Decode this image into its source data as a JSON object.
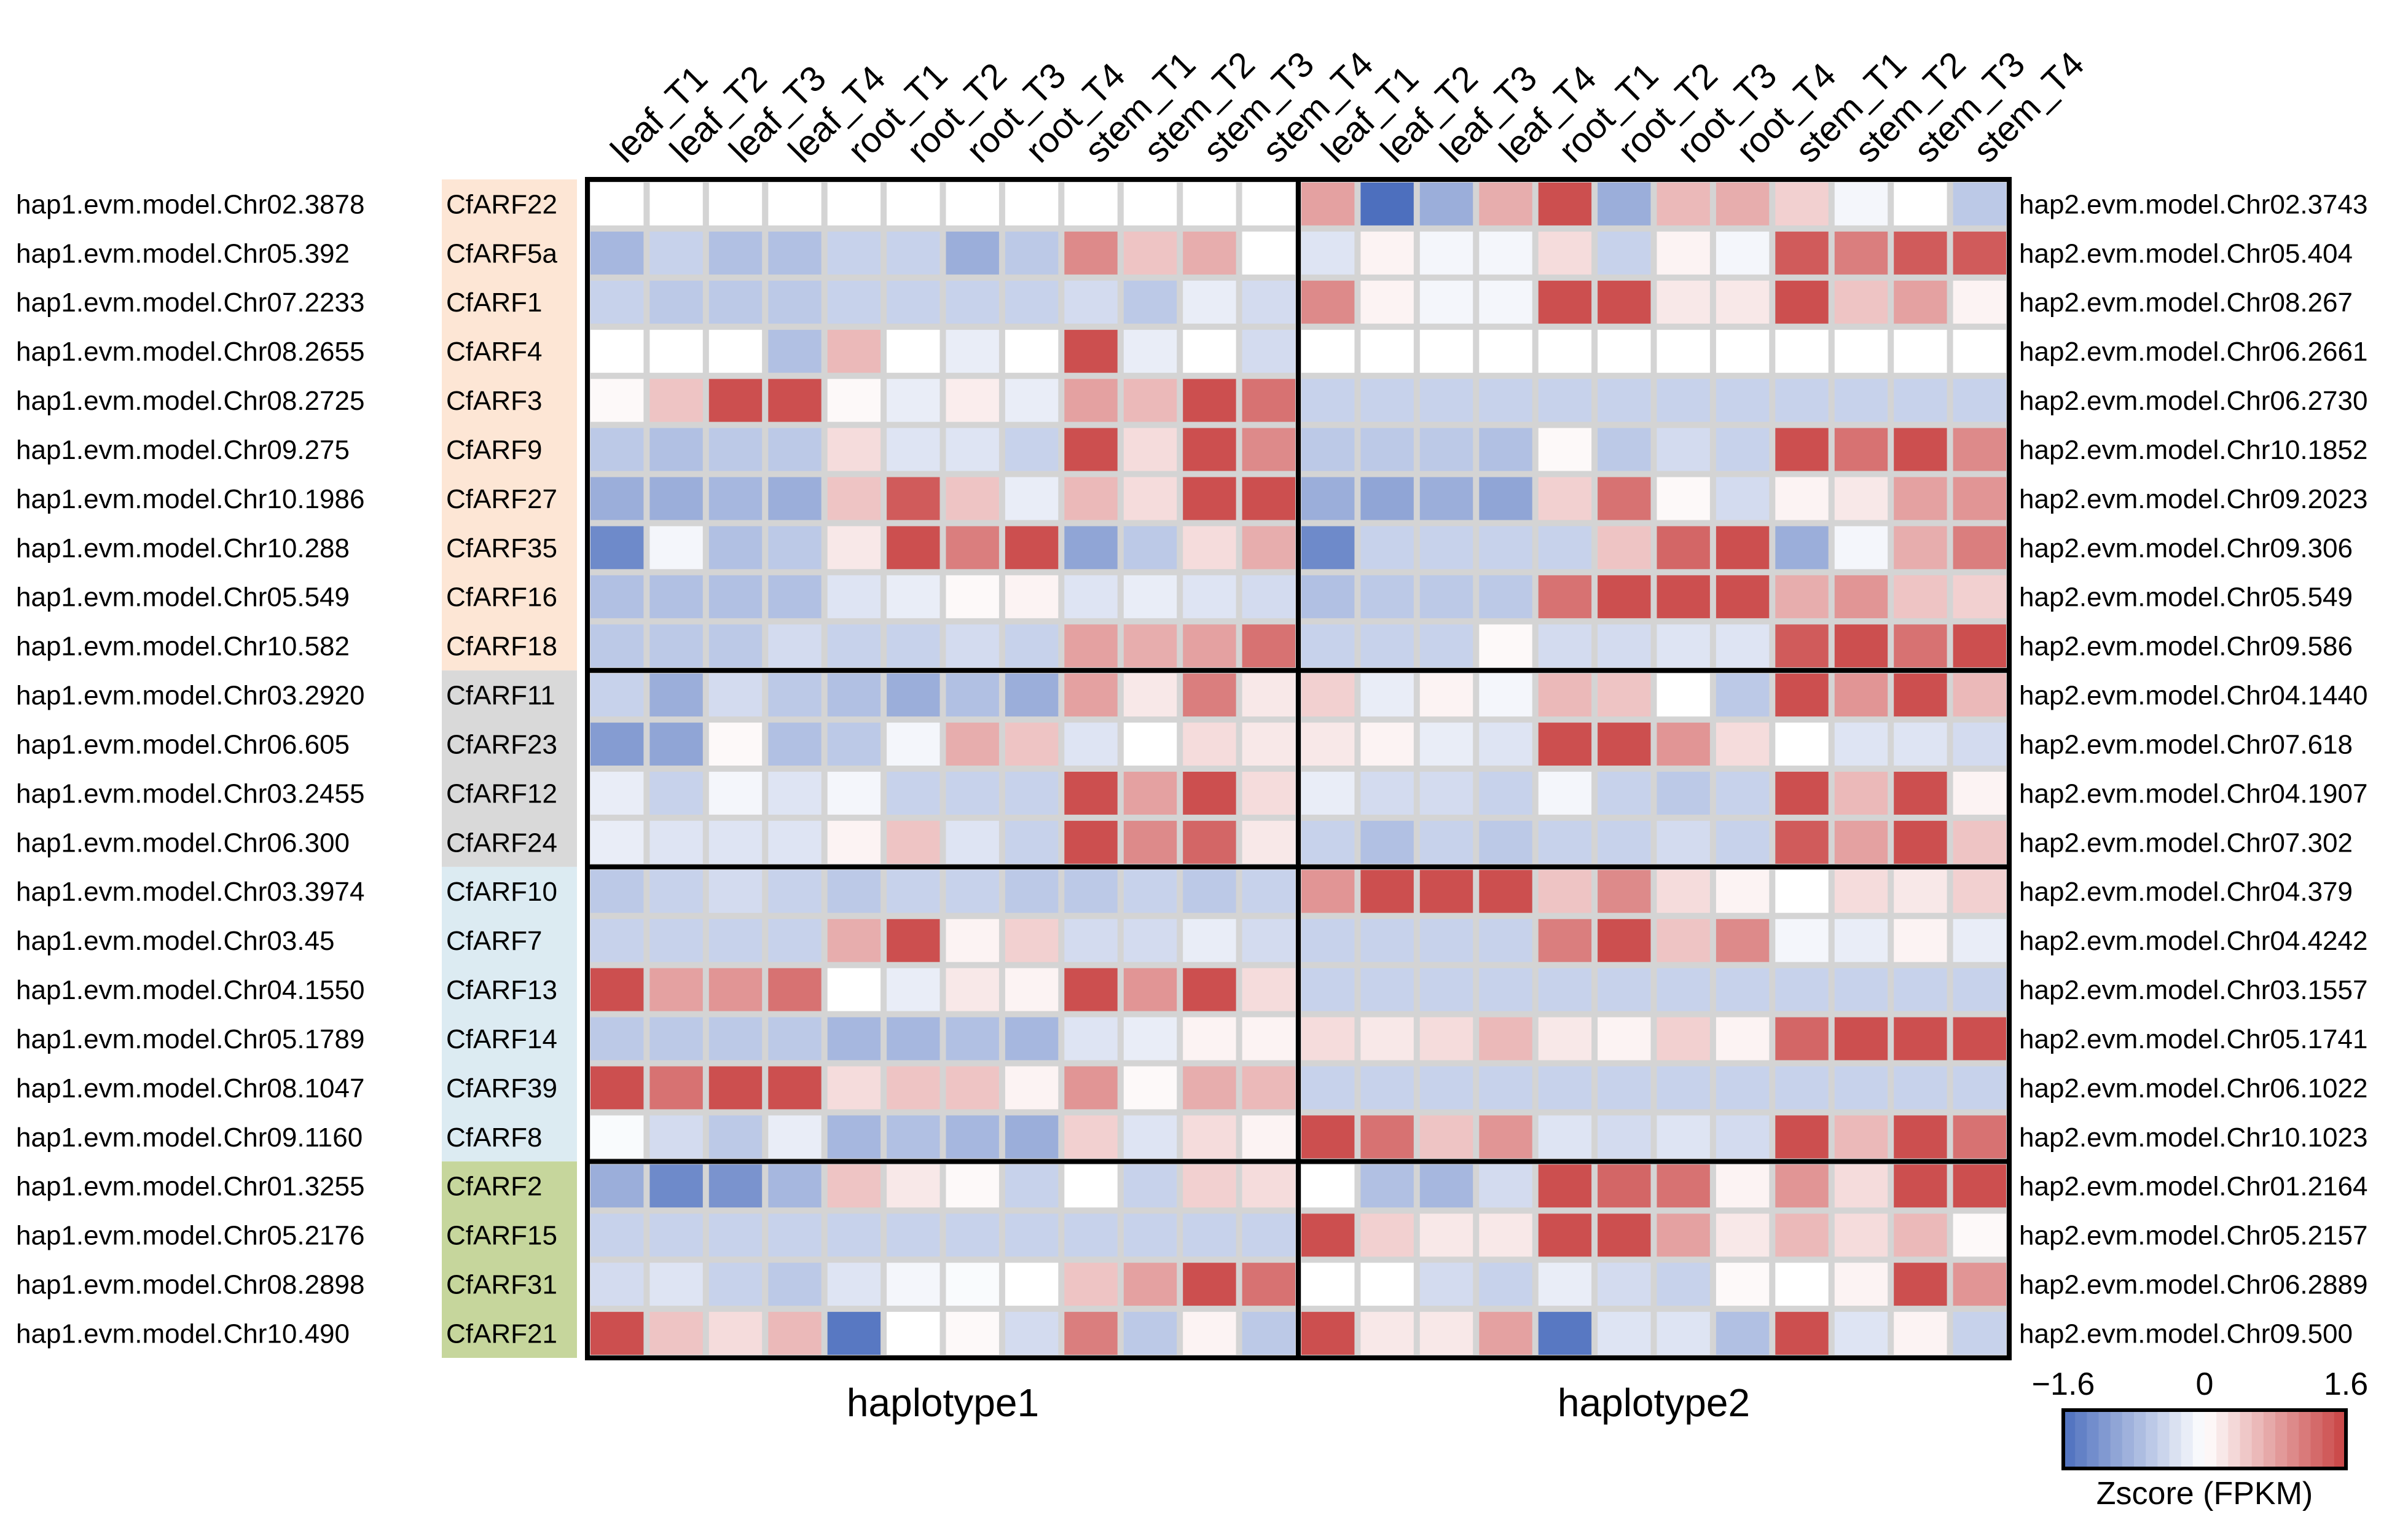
{
  "chart_data": {
    "type": "heatmap",
    "title": "",
    "columns": [
      "leaf_T1",
      "leaf_T2",
      "leaf_T3",
      "leaf_T4",
      "root_T1",
      "root_T2",
      "root_T3",
      "root_T4",
      "stem_T1",
      "stem_T2",
      "stem_T3",
      "stem_T4"
    ],
    "haplotypes": [
      {
        "name": "haplotype1",
        "gene_ids": [
          "hap1.evm.model.Chr02.3878",
          "hap1.evm.model.Chr05.392",
          "hap1.evm.model.Chr07.2233",
          "hap1.evm.model.Chr08.2655",
          "hap1.evm.model.Chr08.2725",
          "hap1.evm.model.Chr09.275",
          "hap1.evm.model.Chr10.1986",
          "hap1.evm.model.Chr10.288",
          "hap1.evm.model.Chr05.549",
          "hap1.evm.model.Chr10.582",
          "hap1.evm.model.Chr03.2920",
          "hap1.evm.model.Chr06.605",
          "hap1.evm.model.Chr03.2455",
          "hap1.evm.model.Chr06.300",
          "hap1.evm.model.Chr03.3974",
          "hap1.evm.model.Chr03.45",
          "hap1.evm.model.Chr04.1550",
          "hap1.evm.model.Chr05.1789",
          "hap1.evm.model.Chr08.1047",
          "hap1.evm.model.Chr09.1160",
          "hap1.evm.model.Chr01.3255",
          "hap1.evm.model.Chr05.2176",
          "hap1.evm.model.Chr08.2898",
          "hap1.evm.model.Chr10.490"
        ]
      },
      {
        "name": "haplotype2",
        "gene_ids": [
          "hap2.evm.model.Chr02.3743",
          "hap2.evm.model.Chr05.404",
          "hap2.evm.model.Chr08.267",
          "hap2.evm.model.Chr06.2661",
          "hap2.evm.model.Chr06.2730",
          "hap2.evm.model.Chr10.1852",
          "hap2.evm.model.Chr09.2023",
          "hap2.evm.model.Chr09.306",
          "hap2.evm.model.Chr05.549",
          "hap2.evm.model.Chr09.586",
          "hap2.evm.model.Chr04.1440",
          "hap2.evm.model.Chr07.618",
          "hap2.evm.model.Chr04.1907",
          "hap2.evm.model.Chr07.302",
          "hap2.evm.model.Chr04.379",
          "hap2.evm.model.Chr04.4242",
          "hap2.evm.model.Chr03.1557",
          "hap2.evm.model.Chr05.1741",
          "hap2.evm.model.Chr06.1022",
          "hap2.evm.model.Chr10.1023",
          "hap2.evm.model.Chr01.2164",
          "hap2.evm.model.Chr05.2157",
          "hap2.evm.model.Chr06.2889",
          "hap2.evm.model.Chr09.500"
        ]
      }
    ],
    "arf_names": [
      "CfARF22",
      "CfARF5a",
      "CfARF1",
      "CfARF4",
      "CfARF3",
      "CfARF9",
      "CfARF27",
      "CfARF35",
      "CfARF16",
      "CfARF18",
      "CfARF11",
      "CfARF23",
      "CfARF12",
      "CfARF24",
      "CfARF10",
      "CfARF7",
      "CfARF13",
      "CfARF14",
      "CfARF39",
      "CfARF8",
      "CfARF2",
      "CfARF15",
      "CfARF31",
      "CfARF21"
    ],
    "groups": [
      {
        "rows": 10,
        "color": "#fde6d5"
      },
      {
        "rows": 4,
        "color": "#d9d9d9"
      },
      {
        "rows": 6,
        "color": "#dcebf2"
      },
      {
        "rows": 4,
        "color": "#c6d69c"
      }
    ],
    "values": [
      [
        0,
        0,
        0,
        0,
        0,
        0,
        0,
        0,
        0,
        0,
        0,
        0,
        0.8,
        -1.6,
        -0.9,
        0.7,
        1.5,
        -0.9,
        0.6,
        0.7,
        0.4,
        -0.1,
        0,
        -0.6
      ],
      [
        -0.8,
        -0.5,
        -0.7,
        -0.7,
        -0.5,
        -0.5,
        -0.9,
        -0.6,
        1.0,
        0.5,
        0.7,
        0,
        -0.3,
        0.1,
        -0.1,
        -0.1,
        0.3,
        -0.5,
        0.1,
        -0.1,
        1.4,
        1.1,
        1.4,
        1.4
      ],
      [
        -0.5,
        -0.6,
        -0.6,
        -0.6,
        -0.5,
        -0.5,
        -0.5,
        -0.5,
        -0.4,
        -0.6,
        -0.2,
        -0.4,
        1.0,
        0.1,
        -0.1,
        -0.1,
        1.5,
        1.5,
        0.2,
        0.2,
        1.5,
        0.5,
        0.8,
        0.1
      ],
      [
        0,
        0,
        0,
        -0.7,
        0.6,
        0,
        -0.2,
        0,
        1.5,
        -0.2,
        0,
        -0.4,
        0,
        0,
        0,
        0,
        0,
        0,
        0,
        0,
        0,
        0,
        0,
        0
      ],
      [
        0.05,
        0.5,
        1.5,
        1.5,
        0.05,
        -0.2,
        0.15,
        -0.2,
        0.8,
        0.6,
        1.5,
        1.2,
        -0.5,
        -0.5,
        -0.5,
        -0.5,
        -0.5,
        -0.5,
        -0.5,
        -0.5,
        -0.5,
        -0.5,
        -0.5,
        -0.5
      ],
      [
        -0.6,
        -0.7,
        -0.6,
        -0.6,
        0.3,
        -0.3,
        -0.3,
        -0.5,
        1.5,
        0.3,
        1.5,
        1.0,
        -0.6,
        -0.6,
        -0.6,
        -0.7,
        0.05,
        -0.6,
        -0.4,
        -0.5,
        1.5,
        1.2,
        1.5,
        1.0
      ],
      [
        -0.9,
        -0.9,
        -0.8,
        -0.9,
        0.5,
        1.4,
        0.5,
        -0.2,
        0.6,
        0.3,
        1.5,
        1.5,
        -0.9,
        -1.0,
        -0.9,
        -1.0,
        0.4,
        1.2,
        0.05,
        -0.4,
        0.1,
        0.2,
        0.8,
        0.9
      ],
      [
        -1.3,
        -0.1,
        -0.7,
        -0.6,
        0.2,
        1.5,
        1.1,
        1.5,
        -1.0,
        -0.6,
        0.3,
        0.7,
        -1.3,
        -0.5,
        -0.5,
        -0.5,
        -0.5,
        0.5,
        1.3,
        1.5,
        -0.9,
        -0.1,
        0.7,
        1.1
      ],
      [
        -0.7,
        -0.7,
        -0.7,
        -0.7,
        -0.3,
        -0.2,
        0.05,
        0.1,
        -0.3,
        -0.2,
        -0.3,
        -0.4,
        -0.7,
        -0.6,
        -0.6,
        -0.6,
        1.2,
        1.5,
        1.5,
        1.5,
        0.7,
        0.9,
        0.5,
        0.4
      ],
      [
        -0.6,
        -0.6,
        -0.6,
        -0.4,
        -0.5,
        -0.5,
        -0.4,
        -0.5,
        0.8,
        0.7,
        0.8,
        1.2,
        -0.5,
        -0.5,
        -0.5,
        0.05,
        -0.4,
        -0.4,
        -0.3,
        -0.3,
        1.4,
        1.5,
        1.2,
        1.5
      ],
      [
        -0.5,
        -0.9,
        -0.4,
        -0.6,
        -0.7,
        -0.9,
        -0.7,
        -0.9,
        0.8,
        0.2,
        1.1,
        0.2,
        0.4,
        -0.2,
        0.1,
        -0.1,
        0.6,
        0.5,
        0,
        -0.6,
        1.5,
        0.9,
        1.5,
        0.6
      ],
      [
        -1.1,
        -1.0,
        0.05,
        -0.7,
        -0.6,
        -0.1,
        0.7,
        0.5,
        -0.3,
        0,
        0.3,
        0.2,
        0.2,
        0.1,
        -0.2,
        -0.3,
        1.5,
        1.5,
        0.9,
        0.3,
        0,
        -0.3,
        -0.3,
        -0.4
      ],
      [
        -0.2,
        -0.5,
        -0.1,
        -0.3,
        -0.1,
        -0.5,
        -0.5,
        -0.5,
        1.5,
        0.8,
        1.5,
        0.3,
        -0.2,
        -0.4,
        -0.4,
        -0.5,
        -0.1,
        -0.5,
        -0.6,
        -0.5,
        1.5,
        0.6,
        1.5,
        0.1
      ],
      [
        -0.2,
        -0.3,
        -0.3,
        -0.3,
        0.1,
        0.5,
        -0.3,
        -0.5,
        1.5,
        1.0,
        1.3,
        0.2,
        -0.5,
        -0.7,
        -0.5,
        -0.6,
        -0.5,
        -0.5,
        -0.4,
        -0.5,
        1.4,
        0.8,
        1.5,
        0.5
      ],
      [
        -0.6,
        -0.5,
        -0.4,
        -0.5,
        -0.6,
        -0.5,
        -0.5,
        -0.6,
        -0.6,
        -0.5,
        -0.6,
        -0.5,
        0.9,
        1.5,
        1.5,
        1.5,
        0.5,
        1.0,
        0.3,
        0.1,
        0,
        0.3,
        0.2,
        0.4
      ],
      [
        -0.5,
        -0.5,
        -0.5,
        -0.5,
        0.7,
        1.5,
        0.1,
        0.4,
        -0.4,
        -0.4,
        -0.2,
        -0.4,
        -0.5,
        -0.5,
        -0.5,
        -0.5,
        1.1,
        1.5,
        0.5,
        1.0,
        -0.1,
        -0.2,
        0.1,
        -0.2
      ],
      [
        1.5,
        0.8,
        0.9,
        1.2,
        0,
        -0.2,
        0.2,
        0.1,
        1.5,
        0.9,
        1.5,
        0.3,
        -0.5,
        -0.5,
        -0.5,
        -0.5,
        -0.5,
        -0.5,
        -0.5,
        -0.5,
        -0.5,
        -0.5,
        -0.5,
        -0.5
      ],
      [
        -0.6,
        -0.6,
        -0.6,
        -0.6,
        -0.8,
        -0.8,
        -0.7,
        -0.8,
        -0.3,
        -0.2,
        0.1,
        0.1,
        0.3,
        0.2,
        0.3,
        0.6,
        0.2,
        0.1,
        0.4,
        0.1,
        1.3,
        1.5,
        1.5,
        1.5
      ],
      [
        1.5,
        1.2,
        1.5,
        1.5,
        0.3,
        0.5,
        0.5,
        0.1,
        0.9,
        0.05,
        0.7,
        0.6,
        -0.5,
        -0.5,
        -0.5,
        -0.5,
        -0.5,
        -0.5,
        -0.5,
        -0.5,
        -0.5,
        -0.5,
        -0.5,
        -0.5
      ],
      [
        -0.05,
        -0.4,
        -0.6,
        -0.2,
        -0.8,
        -0.7,
        -0.8,
        -0.9,
        0.4,
        -0.3,
        0.3,
        0.1,
        1.5,
        1.2,
        0.5,
        0.9,
        -0.3,
        -0.4,
        -0.3,
        -0.4,
        1.5,
        0.6,
        1.5,
        1.2
      ],
      [
        -0.9,
        -1.3,
        -1.2,
        -0.8,
        0.5,
        0.2,
        0.05,
        -0.5,
        0,
        -0.5,
        0.4,
        0.3,
        0,
        -0.7,
        -0.8,
        -0.4,
        1.5,
        1.3,
        1.2,
        0.1,
        0.9,
        0.3,
        1.5,
        1.5
      ],
      [
        -0.5,
        -0.5,
        -0.5,
        -0.5,
        -0.5,
        -0.5,
        -0.5,
        -0.5,
        -0.5,
        -0.5,
        -0.5,
        -0.5,
        1.5,
        0.4,
        0.2,
        0.2,
        1.5,
        1.5,
        0.8,
        0.2,
        0.6,
        0.3,
        0.6,
        0.05
      ],
      [
        -0.4,
        -0.3,
        -0.5,
        -0.6,
        -0.3,
        -0.1,
        -0.05,
        0,
        0.5,
        0.8,
        1.5,
        1.2,
        0,
        0,
        -0.4,
        -0.5,
        -0.2,
        -0.4,
        -0.5,
        0.05,
        0,
        0.1,
        1.5,
        0.9
      ],
      [
        1.5,
        0.5,
        0.3,
        0.6,
        -1.5,
        0,
        0.05,
        -0.4,
        1.1,
        -0.6,
        0.1,
        -0.6,
        1.5,
        0.2,
        0.2,
        0.8,
        -1.5,
        -0.3,
        -0.3,
        -0.7,
        1.5,
        -0.3,
        0.1,
        -0.5
      ]
    ],
    "color_scale": {
      "min": -1.6,
      "max": 1.6,
      "low_color": "#4d6fbe",
      "mid_color": "#ffffff",
      "high_color": "#c94343",
      "tick_labels": [
        "−1.6",
        "0",
        "1.6"
      ],
      "label": "Zscore (FPKM)",
      "steps": 24
    },
    "grid_color": "#d4d4d4",
    "border_color": "#000000"
  }
}
